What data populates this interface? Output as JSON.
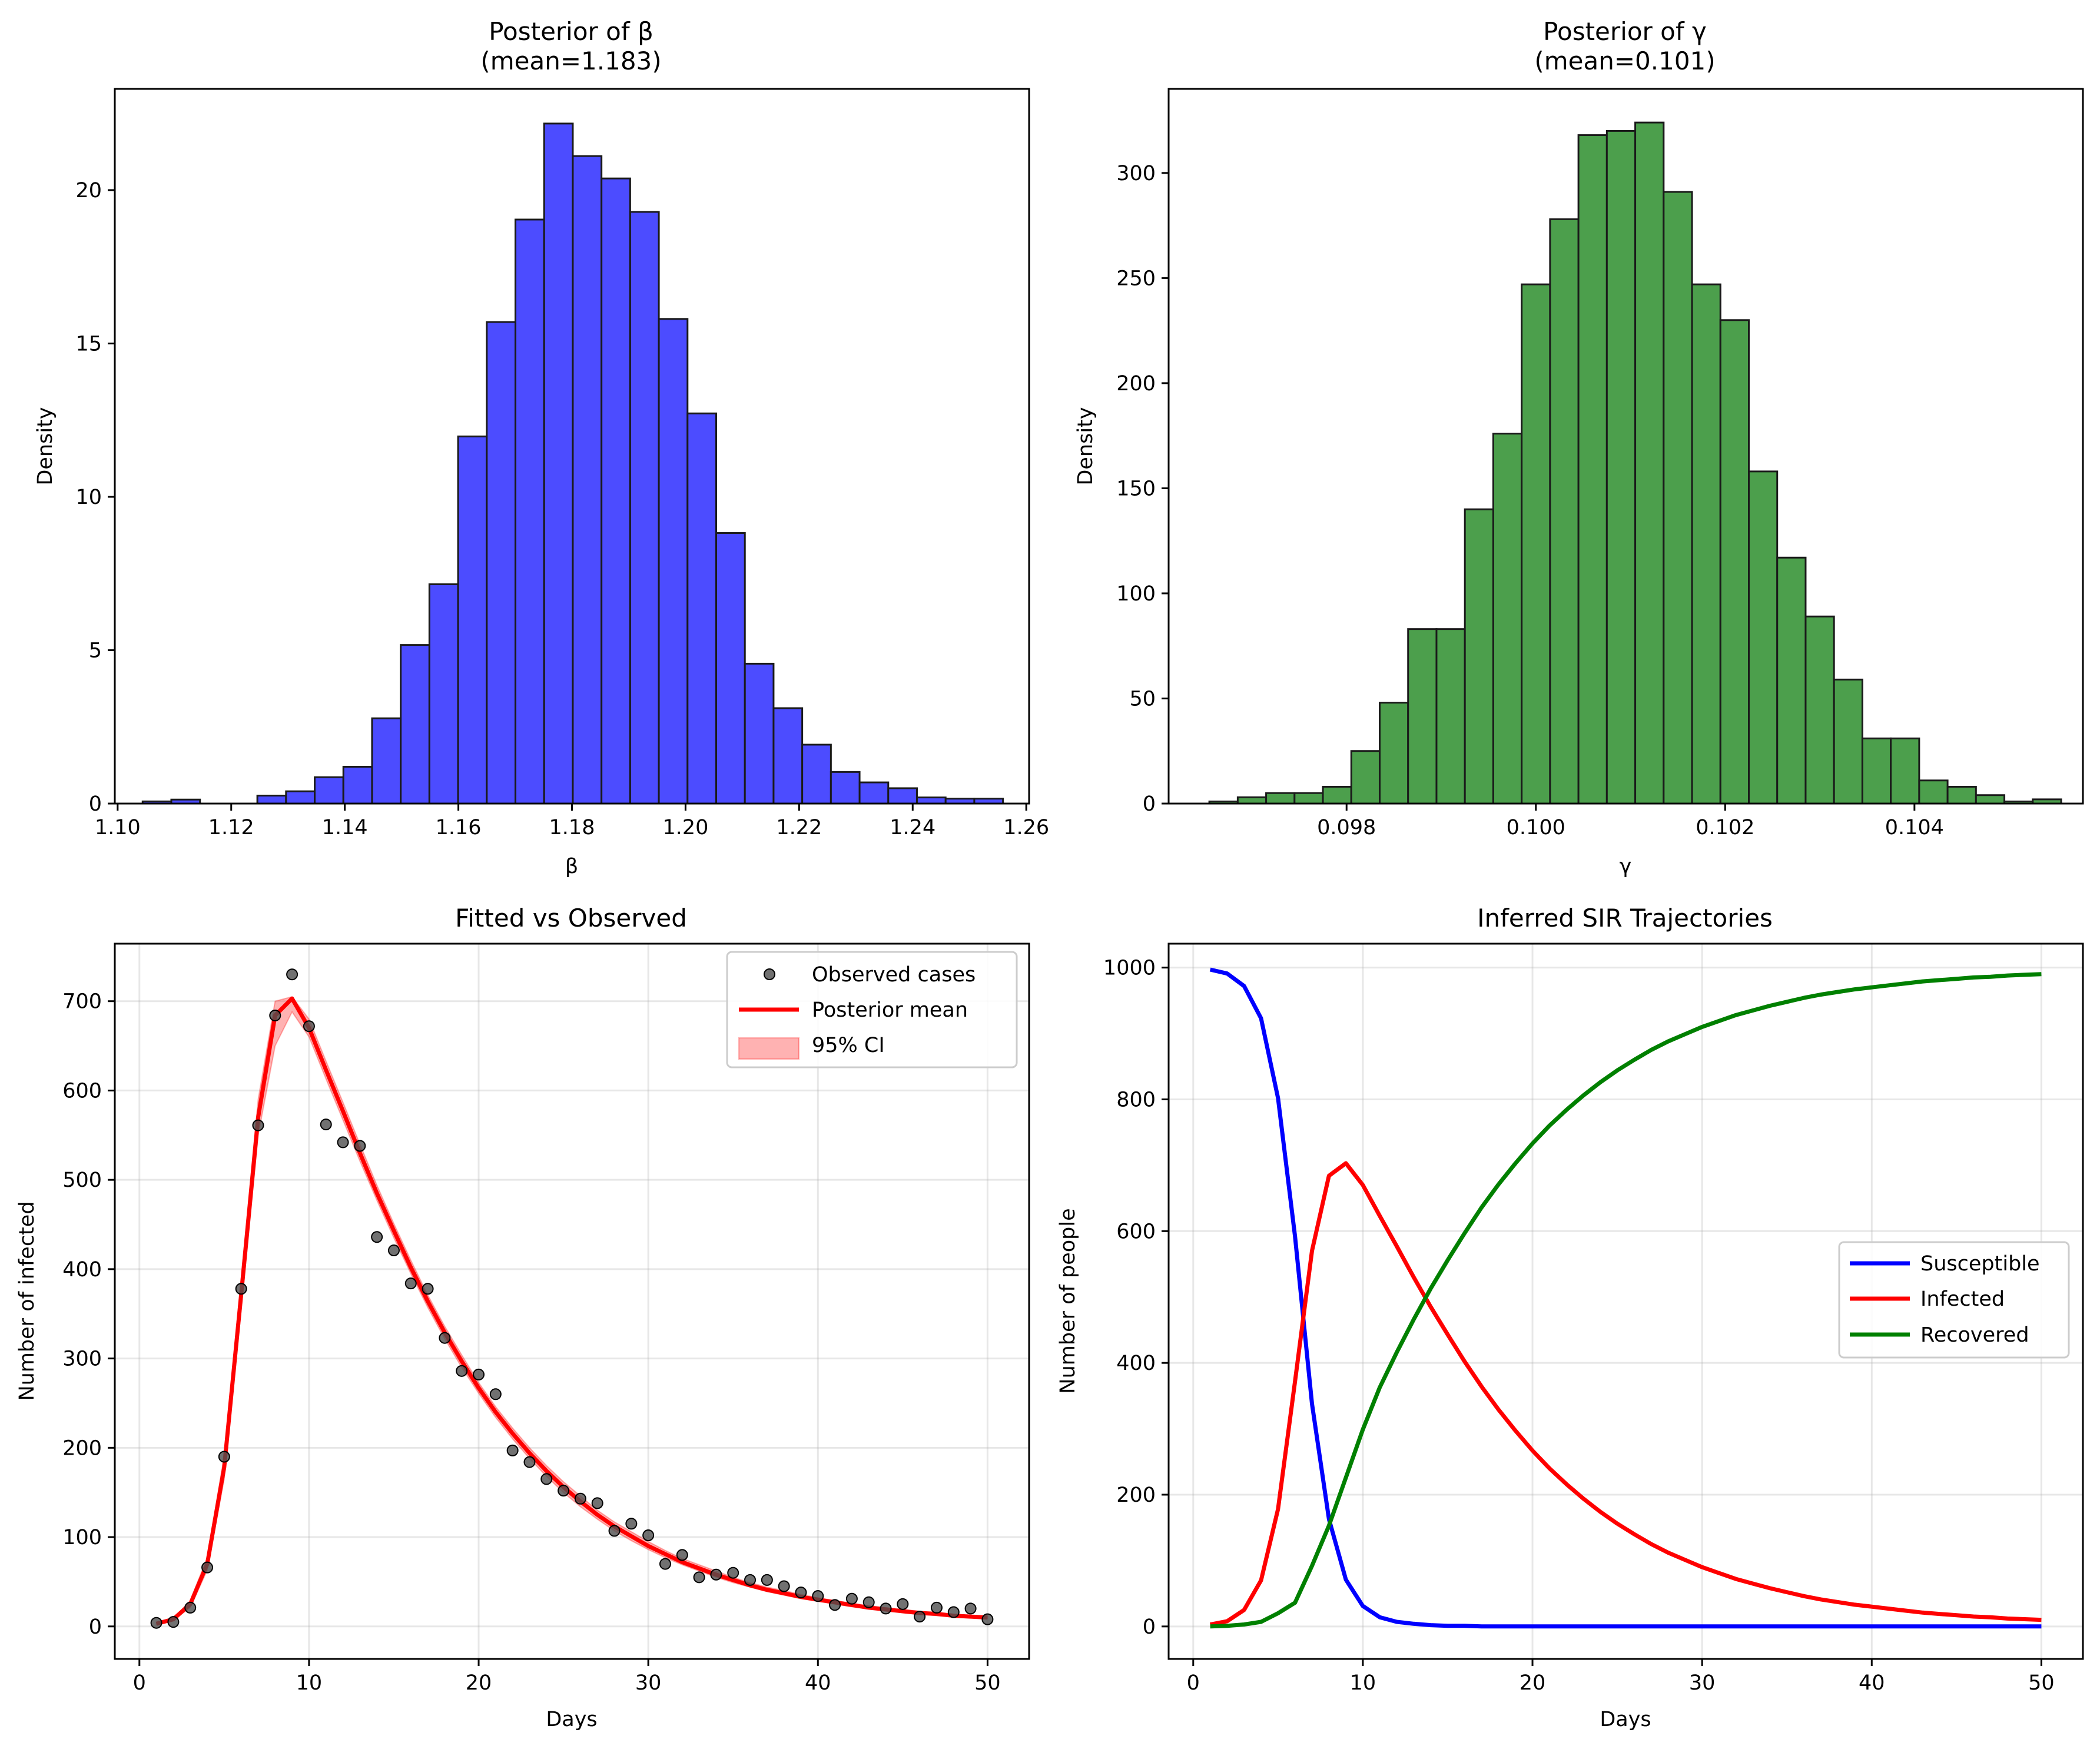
{
  "chart_data": [
    {
      "type": "bar",
      "id": "beta",
      "title": "Posterior of β",
      "subtitle": "(mean=1.183)",
      "xlabel": "β",
      "ylabel": "Density",
      "xlim": [
        1.0995,
        1.2605
      ],
      "ylim": [
        0,
        23.3
      ],
      "xticks": [
        1.1,
        1.12,
        1.14,
        1.16,
        1.18,
        1.2,
        1.22,
        1.24,
        1.26
      ],
      "xtick_labels": [
        "1.10",
        "1.12",
        "1.14",
        "1.16",
        "1.18",
        "1.20",
        "1.22",
        "1.24",
        "1.26"
      ],
      "yticks": [
        0,
        5,
        10,
        15,
        20
      ],
      "ytick_labels": [
        "0",
        "5",
        "10",
        "15",
        "20"
      ],
      "bin_start": 1.1044,
      "bin_width": 0.00505,
      "values": [
        0.07,
        0.13,
        0.0,
        0.0,
        0.26,
        0.4,
        0.86,
        1.2,
        2.78,
        5.17,
        7.15,
        11.97,
        15.7,
        19.04,
        22.17,
        21.11,
        20.38,
        19.29,
        15.8,
        12.72,
        8.82,
        4.56,
        3.11,
        1.92,
        1.03,
        0.69,
        0.5,
        0.2,
        0.16,
        0.16
      ],
      "color": "#4c4cff",
      "edge_color": "#1a1a1a"
    },
    {
      "type": "bar",
      "id": "gamma",
      "title": "Posterior of γ",
      "subtitle": "(mean=0.101)",
      "xlabel": "γ",
      "ylabel": "Density",
      "xlim": [
        0.09612,
        0.10578
      ],
      "ylim": [
        0,
        340
      ],
      "xticks": [
        0.098,
        0.1,
        0.102,
        0.104
      ],
      "xtick_labels": [
        "0.098",
        "0.100",
        "0.102",
        "0.104"
      ],
      "yticks": [
        0,
        50,
        100,
        150,
        200,
        250,
        300
      ],
      "ytick_labels": [
        "0",
        "50",
        "100",
        "150",
        "200",
        "250",
        "300"
      ],
      "bin_start": 0.09655,
      "bin_width": 0.0003,
      "values": [
        1,
        3,
        5,
        5,
        8,
        25,
        48,
        83,
        83,
        140,
        176,
        247,
        278,
        318,
        320,
        324,
        291,
        247,
        230,
        158,
        117,
        89,
        59,
        31,
        31,
        11,
        8,
        4,
        1,
        2
      ],
      "color": "#4c9f4c",
      "edge_color": "#1a1a1a"
    },
    {
      "type": "line",
      "id": "fit",
      "title": "Fitted vs Observed",
      "xlabel": "Days",
      "ylabel": "Number of infected",
      "xlim": [
        -1.45,
        52.45
      ],
      "ylim": [
        -36.4,
        764.4
      ],
      "xticks": [
        0,
        10,
        20,
        30,
        40,
        50
      ],
      "xtick_labels": [
        "0",
        "10",
        "20",
        "30",
        "40",
        "50"
      ],
      "yticks": [
        0,
        100,
        200,
        300,
        400,
        500,
        600,
        700
      ],
      "ytick_labels": [
        "0",
        "100",
        "200",
        "300",
        "400",
        "500",
        "600",
        "700"
      ],
      "grid": true,
      "legend": "upper right",
      "x": [
        1,
        2,
        3,
        4,
        5,
        6,
        7,
        8,
        9,
        10,
        11,
        12,
        13,
        14,
        15,
        16,
        17,
        18,
        19,
        20,
        21,
        22,
        23,
        24,
        25,
        26,
        27,
        28,
        29,
        30,
        31,
        32,
        33,
        34,
        35,
        36,
        37,
        38,
        39,
        40,
        41,
        42,
        43,
        44,
        45,
        46,
        47,
        48,
        49,
        50
      ],
      "observed": [
        4,
        5,
        21,
        66,
        190,
        378,
        561,
        684,
        730,
        672,
        562,
        542,
        538,
        436,
        421,
        384,
        378,
        323,
        286,
        282,
        260,
        197,
        184,
        165,
        152,
        143,
        138,
        107,
        115,
        102,
        70,
        80,
        55,
        58,
        60,
        52,
        52,
        45,
        38,
        34,
        24,
        31,
        27,
        20,
        25,
        11,
        21,
        16,
        20,
        8
      ],
      "fitted": [
        3,
        8,
        25,
        70,
        178,
        372,
        570,
        684,
        703,
        670,
        623,
        577,
        530,
        485,
        443,
        402,
        364,
        329,
        297,
        267,
        240,
        216,
        194,
        174,
        156,
        140,
        125,
        112,
        101,
        90,
        81,
        72,
        65,
        58,
        52,
        46,
        41,
        37,
        33,
        30,
        27,
        24,
        21,
        19,
        17,
        15,
        14,
        12,
        11,
        10
      ],
      "ci_lower": [
        2,
        7,
        21,
        63,
        165,
        355,
        550,
        650,
        688,
        660,
        613,
        567,
        521,
        477,
        435,
        395,
        357,
        322,
        290,
        261,
        234,
        210,
        188,
        168,
        150,
        134,
        120,
        107,
        96,
        86,
        77,
        69,
        62,
        55,
        49,
        44,
        39,
        35,
        31,
        28,
        25,
        22,
        20,
        18,
        16,
        14,
        12,
        11,
        10,
        9
      ],
      "ci_upper": [
        4,
        9,
        29,
        77,
        191,
        389,
        590,
        700,
        705,
        680,
        633,
        587,
        540,
        494,
        451,
        410,
        371,
        336,
        304,
        273,
        246,
        222,
        200,
        180,
        162,
        146,
        130,
        117,
        106,
        95,
        85,
        76,
        69,
        62,
        55,
        49,
        44,
        40,
        36,
        32,
        29,
        26,
        23,
        21,
        19,
        17,
        15,
        13,
        12,
        11
      ],
      "legend_entries": [
        "Observed cases",
        "Posterior mean",
        "95% CI"
      ],
      "colors": {
        "observed": "#4d4d4d",
        "fitted": "#ff0000",
        "ci": "#ff0000"
      }
    },
    {
      "type": "line",
      "id": "sir",
      "title": "Inferred SIR Trajectories",
      "xlabel": "Days",
      "ylabel": "Number of people",
      "xlim": [
        -1.45,
        52.45
      ],
      "ylim": [
        -49.3,
        1036.3
      ],
      "xticks": [
        0,
        10,
        20,
        30,
        40,
        50
      ],
      "xtick_labels": [
        "0",
        "10",
        "20",
        "30",
        "40",
        "50"
      ],
      "yticks": [
        0,
        200,
        400,
        600,
        800,
        1000
      ],
      "ytick_labels": [
        "0",
        "200",
        "400",
        "600",
        "800",
        "1000"
      ],
      "grid": true,
      "legend": "center right",
      "x": [
        1,
        2,
        3,
        4,
        5,
        6,
        7,
        8,
        9,
        10,
        11,
        12,
        13,
        14,
        15,
        16,
        17,
        18,
        19,
        20,
        21,
        22,
        23,
        24,
        25,
        26,
        27,
        28,
        29,
        30,
        31,
        32,
        33,
        34,
        35,
        36,
        37,
        38,
        39,
        40,
        41,
        42,
        43,
        44,
        45,
        46,
        47,
        48,
        49,
        50
      ],
      "series": [
        {
          "name": "Susceptible",
          "color": "#0000ff",
          "values": [
            997,
            991,
            972,
            923,
            802,
            592,
            338,
            163,
            71,
            31,
            14,
            7,
            4,
            2,
            1,
            1,
            0,
            0,
            0,
            0,
            0,
            0,
            0,
            0,
            0,
            0,
            0,
            0,
            0,
            0,
            0,
            0,
            0,
            0,
            0,
            0,
            0,
            0,
            0,
            0,
            0,
            0,
            0,
            0,
            0,
            0,
            0,
            0,
            0,
            0
          ]
        },
        {
          "name": "Infected",
          "color": "#ff0000",
          "values": [
            3,
            8,
            25,
            70,
            178,
            372,
            570,
            684,
            703,
            670,
            623,
            577,
            530,
            485,
            443,
            402,
            364,
            329,
            297,
            267,
            240,
            216,
            194,
            174,
            156,
            140,
            125,
            112,
            101,
            90,
            81,
            72,
            65,
            58,
            52,
            46,
            41,
            37,
            33,
            30,
            27,
            24,
            21,
            19,
            17,
            15,
            14,
            12,
            11,
            10
          ]
        },
        {
          "name": "Recovered",
          "color": "#008000",
          "values": [
            0,
            1,
            3,
            7,
            20,
            36,
            92,
            153,
            226,
            299,
            363,
            416,
            466,
            513,
            556,
            597,
            636,
            671,
            703,
            733,
            760,
            784,
            806,
            826,
            844,
            860,
            875,
            888,
            899,
            910,
            919,
            928,
            935,
            942,
            948,
            954,
            959,
            963,
            967,
            970,
            973,
            976,
            979,
            981,
            983,
            985,
            986,
            988,
            989,
            990
          ]
        }
      ]
    }
  ]
}
